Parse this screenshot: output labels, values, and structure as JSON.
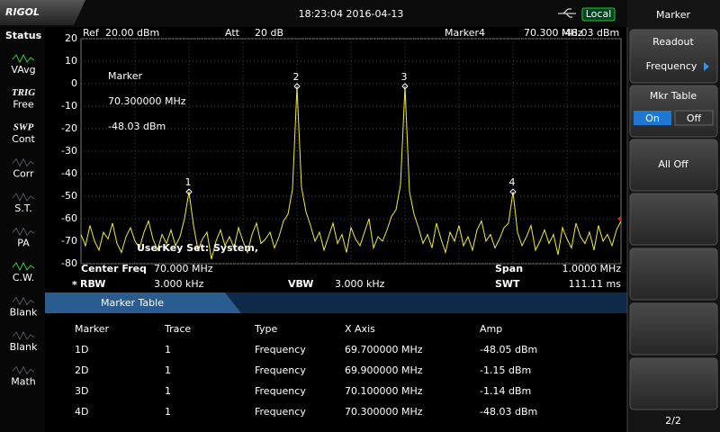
{
  "header": {
    "logo": "RIGOL",
    "datetime": "18:23:04 2016-04-13",
    "remote": "Local"
  },
  "status": {
    "title": "Status",
    "items": [
      {
        "label": "VAvg"
      },
      {
        "tag": "TRIG",
        "label": "Free"
      },
      {
        "tag": "SWP",
        "label": "Cont"
      },
      {
        "label": "Corr"
      },
      {
        "label": "S.T."
      },
      {
        "label": "PA"
      },
      {
        "label": "C.W."
      },
      {
        "label": "Blank"
      },
      {
        "label": "Blank"
      },
      {
        "label": "Math"
      }
    ]
  },
  "menu": {
    "title": "Marker",
    "readout": {
      "label": "Readout",
      "value": "Frequency"
    },
    "mkr_table": {
      "label": "Mkr Table",
      "on": "On",
      "off": "Off"
    },
    "all_off": "All Off",
    "page": "2/2"
  },
  "chart_data": {
    "type": "line",
    "ref_label": "Ref",
    "ref_level": "20.00 dBm",
    "att_label": "Att",
    "att": "20 dB",
    "marker_label": "Marker4",
    "marker_freq": "70.300 MHz",
    "marker_amp": "-48.03 dBm",
    "readout": [
      "Marker",
      "70.300000 MHz",
      "-48.03 dBm"
    ],
    "userkey": [
      "UserKey Set:",
      "System,"
    ],
    "marker_labels": [
      "1",
      "2",
      "3",
      "4"
    ],
    "color": "#f2ea3c",
    "ylim": [
      -80,
      20
    ],
    "yticks": [
      20,
      10,
      0,
      -10,
      -20,
      -30,
      -40,
      -50,
      -60,
      -70,
      -80
    ],
    "grid": true,
    "values": [
      -67,
      -72,
      -63,
      -70,
      -74,
      -66,
      -69,
      -62,
      -71,
      -75,
      -68,
      -64,
      -70,
      -73,
      -66,
      -61,
      -69,
      -74,
      -67,
      -71,
      -65,
      -72,
      -68,
      -60,
      -48.05,
      -63,
      -74,
      -69,
      -66,
      -78,
      -70,
      -65,
      -72,
      -68,
      -73,
      -64,
      -70,
      -75,
      -67,
      -62,
      -71,
      -69,
      -66,
      -73,
      -68,
      -61,
      -58,
      -47,
      -1.15,
      -46,
      -57,
      -63,
      -70,
      -66,
      -74,
      -68,
      -62,
      -71,
      -67,
      -75,
      -64,
      -69,
      -72,
      -66,
      -60,
      -73,
      -68,
      -70,
      -65,
      -59,
      -56,
      -45,
      -1.14,
      -48,
      -58,
      -64,
      -71,
      -67,
      -73,
      -62,
      -69,
      -75,
      -66,
      -70,
      -63,
      -72,
      -68,
      -74,
      -65,
      -61,
      -70,
      -67,
      -73,
      -69,
      -64,
      -62,
      -48.03,
      -66,
      -72,
      -68,
      -63,
      -74,
      -70,
      -65,
      -71,
      -67,
      -76,
      -64,
      -69,
      -73,
      -62,
      -68,
      -71,
      -66,
      -74,
      -63,
      -70,
      -67,
      -72,
      -65,
      -61
    ],
    "settings": {
      "center_label": "Center Freq",
      "center": "70.000 MHz",
      "span_label": "Span",
      "span": "1.0000 MHz",
      "rbw_flag": "*",
      "rbw_label": "RBW",
      "rbw": "3.000 kHz",
      "vbw_label": "VBW",
      "vbw": "3.000 kHz",
      "swt_label": "SWT",
      "swt": "111.11 ms"
    }
  },
  "marker_table": {
    "title": "Marker Table",
    "columns": [
      "Marker",
      "Trace",
      "Type",
      "X Axis",
      "Amp"
    ],
    "rows": [
      [
        "1D",
        "1",
        "Frequency",
        "69.700000 MHz",
        "-48.05 dBm"
      ],
      [
        "2D",
        "1",
        "Frequency",
        "69.900000 MHz",
        "-1.15 dBm"
      ],
      [
        "3D",
        "1",
        "Frequency",
        "70.100000 MHz",
        "-1.14 dBm"
      ],
      [
        "4D",
        "1",
        "Frequency",
        "70.300000 MHz",
        "-48.03 dBm"
      ]
    ]
  }
}
